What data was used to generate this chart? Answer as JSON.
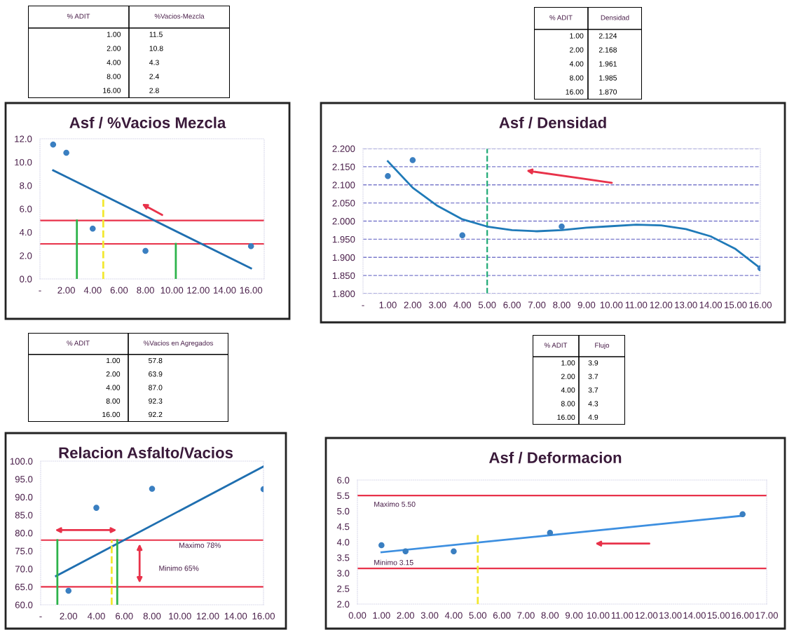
{
  "chart_data": [
    {
      "type": "other",
      "xlabel": "% ADIT",
      "ylabel": "%Vacios-Mezcla",
      "categories": [
        "1.00",
        "2.00",
        "4.00",
        "8.00",
        "16.00"
      ],
      "value_labels": [
        "11.5",
        "10.8",
        "4.3",
        "2.4",
        "2.8"
      ]
    },
    {
      "type": "other",
      "xlabel": "% ADIT",
      "ylabel": "Densidad",
      "categories": [
        "1.00",
        "2.00",
        "4.00",
        "8.00",
        "16.00"
      ],
      "value_labels": [
        "2.124",
        "2.168",
        "1.961",
        "1.985",
        "1.870"
      ]
    },
    {
      "type": "scatter",
      "title": "Asf / %Vacios Mezcla",
      "xlim": [
        0,
        17
      ],
      "xticks": [
        {
          "value": 0,
          "label": "-"
        },
        {
          "value": 2,
          "label": "2.00"
        },
        {
          "value": 4,
          "label": "4.00"
        },
        {
          "value": 6,
          "label": "6.00"
        },
        {
          "value": 8,
          "label": "8.00"
        },
        {
          "value": 10,
          "label": "10.00"
        },
        {
          "value": 12,
          "label": "12.00"
        },
        {
          "value": 14,
          "label": "14.00"
        },
        {
          "value": 16,
          "label": "16.00"
        }
      ],
      "ylim": [
        0,
        12
      ],
      "yticks": [
        {
          "value": 0,
          "label": "0.0"
        },
        {
          "value": 2,
          "label": "2.0"
        },
        {
          "value": 4,
          "label": "4.0"
        },
        {
          "value": 6,
          "label": "6.0"
        },
        {
          "value": 8,
          "label": "8.0"
        },
        {
          "value": 10,
          "label": "10.0"
        },
        {
          "value": 12,
          "label": "12.0"
        }
      ],
      "series": [
        {
          "color": "#3a7fc1",
          "x": [
            1,
            2,
            4,
            8,
            16
          ],
          "values": [
            11.5,
            10.8,
            4.3,
            2.4,
            2.8
          ]
        },
        {
          "type": "line",
          "color": "#1f6fb0",
          "x": [
            1,
            16
          ],
          "values": [
            9.3,
            0.9
          ]
        },
        {
          "type": "line",
          "color": "#2db34a",
          "x": [
            2.8,
            2.8
          ],
          "values": [
            0,
            5
          ]
        },
        {
          "type": "line",
          "color": "#2db34a",
          "x": [
            10.3,
            10.3
          ],
          "values": [
            0,
            3
          ]
        },
        {
          "type": "line",
          "color": "#f2e830",
          "line_style": "dashed",
          "x": [
            4.8,
            4.8
          ],
          "values": [
            0,
            6.9
          ]
        }
      ],
      "ref_lines": [
        {
          "axis": "y",
          "value": 5,
          "color": "#e8324a"
        },
        {
          "axis": "y",
          "value": 3,
          "color": "#e8324a"
        }
      ]
    },
    {
      "type": "scatter",
      "title": "Asf / Densidad",
      "grid": "y",
      "xlim": [
        0,
        16
      ],
      "xticks": [
        {
          "value": 0,
          "label": "-"
        },
        {
          "value": 1,
          "label": "1.00"
        },
        {
          "value": 2,
          "label": "2.00"
        },
        {
          "value": 3,
          "label": "3.00"
        },
        {
          "value": 4,
          "label": "4.00"
        },
        {
          "value": 5,
          "label": "5.00"
        },
        {
          "value": 6,
          "label": "6.00"
        },
        {
          "value": 7,
          "label": "7.00"
        },
        {
          "value": 8,
          "label": "8.00"
        },
        {
          "value": 9,
          "label": "9.00"
        },
        {
          "value": 10,
          "label": "10.00"
        },
        {
          "value": 11,
          "label": "11.00"
        },
        {
          "value": 12,
          "label": "12.00"
        },
        {
          "value": 13,
          "label": "13.00"
        },
        {
          "value": 14,
          "label": "14.00"
        },
        {
          "value": 15,
          "label": "15.00"
        },
        {
          "value": 16,
          "label": "16.00"
        }
      ],
      "ylim": [
        1.8,
        2.2
      ],
      "yticks": [
        {
          "value": 1.8,
          "label": "1.800"
        },
        {
          "value": 1.85,
          "label": "1.850"
        },
        {
          "value": 1.9,
          "label": "1.900"
        },
        {
          "value": 1.95,
          "label": "1.950"
        },
        {
          "value": 2.0,
          "label": "2.000"
        },
        {
          "value": 2.05,
          "label": "2.050"
        },
        {
          "value": 2.1,
          "label": "2.100"
        },
        {
          "value": 2.15,
          "label": "2.150"
        },
        {
          "value": 2.2,
          "label": "2.200"
        }
      ],
      "series": [
        {
          "color": "#3a7fc1",
          "x": [
            1,
            2,
            4,
            8,
            16
          ],
          "values": [
            2.124,
            2.168,
            1.961,
            1.985,
            1.87
          ]
        },
        {
          "type": "line",
          "color": "#1f7ab8",
          "x": [
            1,
            2,
            3,
            4,
            5,
            6,
            7,
            8,
            9,
            10,
            11,
            12,
            13,
            14,
            15,
            16
          ],
          "values": [
            2.165,
            2.092,
            2.042,
            2.005,
            1.985,
            1.975,
            1.972,
            1.975,
            1.982,
            1.986,
            1.99,
            1.988,
            1.978,
            1.958,
            1.923,
            1.87
          ]
        }
      ],
      "ref_lines": [
        {
          "axis": "x",
          "value": 5,
          "color": "#22aa77",
          "line_style": "dashed"
        }
      ]
    },
    {
      "type": "other",
      "xlabel": "% ADIT",
      "ylabel": "%Vacios en Agregados",
      "categories": [
        "1.00",
        "2.00",
        "4.00",
        "8.00",
        "16.00"
      ],
      "value_labels": [
        "57.8",
        "63.9",
        "87.0",
        "92.3",
        "92.2"
      ]
    },
    {
      "type": "other",
      "xlabel": "% ADIT",
      "ylabel": "Flujo",
      "categories": [
        "1.00",
        "2.00",
        "4.00",
        "8.00",
        "16.00"
      ],
      "value_labels": [
        "3.9",
        "3.7",
        "3.7",
        "4.3",
        "4.9"
      ]
    },
    {
      "type": "scatter",
      "title": "Relacion Asfalto/Vacios",
      "xlim": [
        0,
        16
      ],
      "xticks": [
        {
          "value": 0,
          "label": "-"
        },
        {
          "value": 2,
          "label": "2.00"
        },
        {
          "value": 4,
          "label": "4.00"
        },
        {
          "value": 6,
          "label": "6.00"
        },
        {
          "value": 8,
          "label": "8.00"
        },
        {
          "value": 10,
          "label": "10.00"
        },
        {
          "value": 12,
          "label": "12.00"
        },
        {
          "value": 14,
          "label": "14.00"
        },
        {
          "value": 16,
          "label": "16.00"
        }
      ],
      "ylim": [
        60,
        100
      ],
      "yticks": [
        {
          "value": 60,
          "label": "60.0"
        },
        {
          "value": 65,
          "label": "65.0"
        },
        {
          "value": 70,
          "label": "70.0"
        },
        {
          "value": 75,
          "label": "75.0"
        },
        {
          "value": 80,
          "label": "80.0"
        },
        {
          "value": 85,
          "label": "85.0"
        },
        {
          "value": 90,
          "label": "90.0"
        },
        {
          "value": 95,
          "label": "95.0"
        },
        {
          "value": 100,
          "label": "100.0"
        }
      ],
      "series": [
        {
          "color": "#3a7fc1",
          "x": [
            2,
            4,
            8,
            16
          ],
          "values": [
            63.9,
            87.0,
            92.3,
            92.2
          ]
        },
        {
          "type": "line",
          "color": "#1f6fb0",
          "x": [
            1.1,
            16
          ],
          "values": [
            68,
            98.5
          ]
        },
        {
          "type": "line",
          "color": "#2db34a",
          "x": [
            1.2,
            1.2
          ],
          "values": [
            60,
            78
          ]
        },
        {
          "type": "line",
          "color": "#2db34a",
          "x": [
            5.5,
            5.5
          ],
          "values": [
            60,
            78
          ]
        },
        {
          "type": "line",
          "color": "#f2e830",
          "line_style": "dashed",
          "x": [
            5.1,
            5.1
          ],
          "values": [
            60,
            78
          ]
        }
      ],
      "ref_lines": [
        {
          "axis": "y",
          "value": 78,
          "color": "#e8324a",
          "label": "Maximo 78%"
        },
        {
          "axis": "y",
          "value": 65,
          "color": "#e8324a",
          "label": "Minimo 65%"
        }
      ]
    },
    {
      "type": "scatter",
      "title": "Asf / Deformacion",
      "xlim": [
        0,
        17
      ],
      "xticks": [
        {
          "value": 0,
          "label": "0.00"
        },
        {
          "value": 1,
          "label": "1.00"
        },
        {
          "value": 2,
          "label": "2.00"
        },
        {
          "value": 3,
          "label": "3.00"
        },
        {
          "value": 4,
          "label": "4.00"
        },
        {
          "value": 5,
          "label": "5.00"
        },
        {
          "value": 6,
          "label": "6.00"
        },
        {
          "value": 7,
          "label": "7.00"
        },
        {
          "value": 8,
          "label": "8.00"
        },
        {
          "value": 9,
          "label": "9.00"
        },
        {
          "value": 10,
          "label": "10.00"
        },
        {
          "value": 11,
          "label": "11.00"
        },
        {
          "value": 12,
          "label": "12.00"
        },
        {
          "value": 13,
          "label": "13.00"
        },
        {
          "value": 14,
          "label": "14.00"
        },
        {
          "value": 15,
          "label": "15.00"
        },
        {
          "value": 16,
          "label": "16.00"
        },
        {
          "value": 17,
          "label": "17.00"
        }
      ],
      "ylim": [
        2,
        6
      ],
      "yticks": [
        {
          "value": 2,
          "label": "2.0"
        },
        {
          "value": 2.5,
          "label": "2.5"
        },
        {
          "value": 3,
          "label": "3.0"
        },
        {
          "value": 3.5,
          "label": "3.5"
        },
        {
          "value": 4,
          "label": "4.0"
        },
        {
          "value": 4.5,
          "label": "4.5"
        },
        {
          "value": 5,
          "label": "5.0"
        },
        {
          "value": 5.5,
          "label": "5.5"
        },
        {
          "value": 6,
          "label": "6.0"
        }
      ],
      "series": [
        {
          "color": "#3a7fc1",
          "x": [
            1,
            2,
            4,
            8,
            16
          ],
          "values": [
            3.9,
            3.7,
            3.7,
            4.3,
            4.9
          ]
        },
        {
          "type": "line",
          "color": "#3d8fe0",
          "x": [
            1,
            16
          ],
          "values": [
            3.67,
            4.85
          ]
        },
        {
          "type": "line",
          "color": "#f2e830",
          "line_style": "dashed",
          "x": [
            5,
            5
          ],
          "values": [
            2,
            4.3
          ]
        }
      ],
      "ref_lines": [
        {
          "axis": "y",
          "value": 5.5,
          "color": "#e8324a",
          "label": "Maximo 5.50"
        },
        {
          "axis": "y",
          "value": 3.15,
          "color": "#e8324a",
          "label": "Minimo 3.15"
        }
      ]
    }
  ]
}
